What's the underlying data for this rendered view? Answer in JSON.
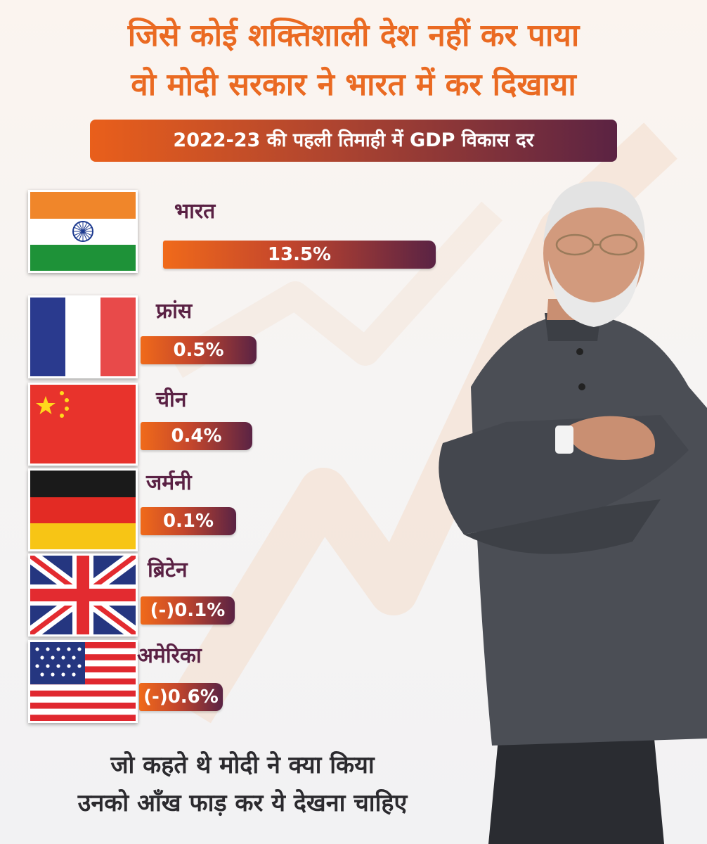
{
  "headline": {
    "line1": "जिसे कोई शक्तिशाली देश नहीं कर पाया",
    "line2": "वो मोदी सरकार ने भारत में कर दिखाया"
  },
  "subtitle": "2022-23 की पहली तिमाही में GDP विकास दर",
  "chart_data": {
    "type": "bar",
    "orientation": "horizontal",
    "categories": [
      "भारत",
      "फ्रांस",
      "चीन",
      "जर्मनी",
      "ब्रिटेन",
      "अमेरिका"
    ],
    "values": [
      13.5,
      0.5,
      0.4,
      0.1,
      -0.1,
      -0.6
    ],
    "value_labels": [
      "13.5%",
      "0.5%",
      "0.4%",
      "0.1%",
      "(-)0.1%",
      "(-)0.6%"
    ],
    "flags": [
      "india-flag",
      "france-flag",
      "china-flag",
      "germany-flag",
      "uk-flag",
      "usa-flag"
    ],
    "bar_colors": [
      "#f06a1a",
      "#5a2344"
    ],
    "title": "2022-23 की पहली तिमाही में GDP विकास दर"
  },
  "footer": {
    "line1": "जो कहते थे मोदी ने क्या किया",
    "line2": "उनको आँख फाड़ कर ये देखना चाहिए"
  },
  "colors": {
    "headline": "#ea6a22",
    "label": "#5a2144",
    "footer": "#2b2a2e"
  }
}
